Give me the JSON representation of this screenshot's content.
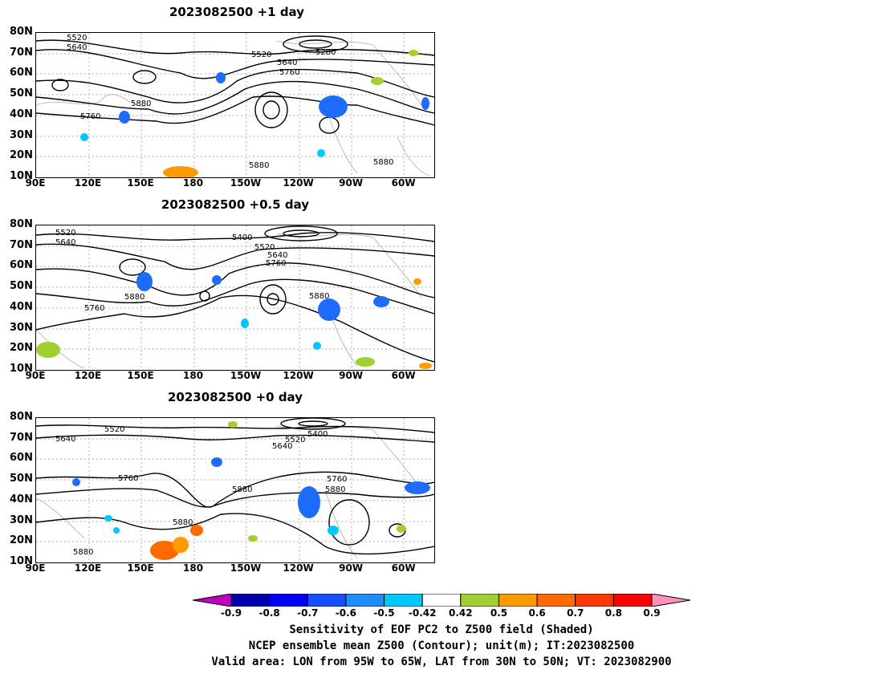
{
  "panels": [
    {
      "title": "2023082500  +1 day",
      "contour_labels": [
        "5520",
        "5640",
        "5520",
        "5640",
        "5760",
        "5280",
        "5880",
        "5760",
        "5880",
        "5880"
      ]
    },
    {
      "title": "2023082500  +0.5 day",
      "contour_labels": [
        "5520",
        "5640",
        "5400",
        "5520",
        "5640",
        "5760",
        "5880",
        "5760",
        "5880"
      ]
    },
    {
      "title": "2023082500  +0 day",
      "contour_labels": [
        "5520",
        "5640",
        "5520",
        "5400",
        "5640",
        "5760",
        "5880",
        "5880",
        "5760",
        "5880",
        "5880"
      ]
    }
  ],
  "lat_ticks": [
    "80N",
    "70N",
    "60N",
    "50N",
    "40N",
    "30N",
    "20N",
    "10N"
  ],
  "lon_ticks": [
    "90E",
    "120E",
    "150E",
    "180",
    "150W",
    "120W",
    "90W",
    "60W"
  ],
  "colorbar": {
    "ticks": [
      "-0.9",
      "-0.8",
      "-0.7",
      "-0.6",
      "-0.5",
      "-0.42",
      "0.42",
      "0.5",
      "0.6",
      "0.7",
      "0.8",
      "0.9"
    ],
    "colors": [
      "#c000c0",
      "#0000b0",
      "#0000ff",
      "#1450ff",
      "#1e8cff",
      "#00c8ff",
      "#ffffff",
      "#a0d030",
      "#ff9a00",
      "#ff6a00",
      "#ff3a00",
      "#ff0000",
      "#ff90c0"
    ]
  },
  "caption": {
    "line1": "Sensitivity of EOF PC2 to Z500 field (Shaded)",
    "line2": "NCEP ensemble mean Z500 (Contour); unit(m); IT:2023082500",
    "line3": "Valid area: LON from 95W to 65W, LAT from 30N to 50N; VT: 2023082900"
  }
}
